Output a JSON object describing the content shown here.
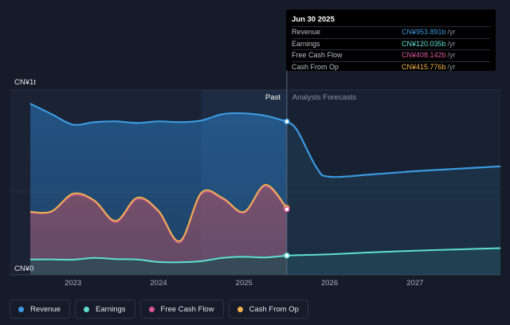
{
  "chart_data": {
    "type": "area",
    "y_axis": {
      "top_label": "CN¥1t",
      "bottom_label": "CN¥0",
      "ylim": [
        0,
        1150
      ]
    },
    "x_axis": {
      "ticks": [
        "2023",
        "2024",
        "2025",
        "2026",
        "2027"
      ],
      "tick_values": [
        2023.0,
        2024.0,
        2025.0,
        2026.0,
        2027.0
      ],
      "xlim": [
        2022.5,
        2028.0
      ]
    },
    "divider": {
      "x": 2025.5,
      "past_label": "Past",
      "forecast_label": "Analysts Forecasts"
    },
    "shaded_band_start": 2024.5,
    "series": [
      {
        "name": "Revenue",
        "color": "#3b9ae1",
        "key": "revenue",
        "points": [
          [
            2022.5,
            1065
          ],
          [
            2022.75,
            1000
          ],
          [
            2023.0,
            935
          ],
          [
            2023.25,
            950
          ],
          [
            2023.5,
            955
          ],
          [
            2023.75,
            945
          ],
          [
            2024.0,
            955
          ],
          [
            2024.25,
            950
          ],
          [
            2024.5,
            960
          ],
          [
            2024.75,
            1000
          ],
          [
            2025.0,
            1005
          ],
          [
            2025.25,
            990
          ],
          [
            2025.5,
            954
          ]
        ],
        "forecast": [
          [
            2025.5,
            954
          ],
          [
            2025.62,
            900
          ],
          [
            2025.85,
            665
          ],
          [
            2026.0,
            610
          ],
          [
            2026.5,
            625
          ],
          [
            2027.0,
            645
          ],
          [
            2027.5,
            660
          ],
          [
            2028.0,
            675
          ]
        ]
      },
      {
        "name": "Earnings",
        "color": "#5ee0d0",
        "key": "earnings",
        "points": [
          [
            2022.5,
            95
          ],
          [
            2022.75,
            96
          ],
          [
            2023.0,
            94
          ],
          [
            2023.25,
            105
          ],
          [
            2023.5,
            98
          ],
          [
            2023.75,
            95
          ],
          [
            2024.0,
            80
          ],
          [
            2024.25,
            78
          ],
          [
            2024.5,
            85
          ],
          [
            2024.75,
            105
          ],
          [
            2025.0,
            112
          ],
          [
            2025.25,
            108
          ],
          [
            2025.5,
            120
          ]
        ],
        "forecast": [
          [
            2025.5,
            120
          ],
          [
            2026.0,
            128
          ],
          [
            2026.5,
            140
          ],
          [
            2027.0,
            150
          ],
          [
            2027.5,
            158
          ],
          [
            2028.0,
            166
          ]
        ]
      },
      {
        "name": "Free Cash Flow",
        "color": "#d9559b",
        "key": "fcf",
        "points": [
          [
            2022.5,
            385
          ],
          [
            2022.75,
            392
          ],
          [
            2023.0,
            495
          ],
          [
            2023.25,
            455
          ],
          [
            2023.5,
            325
          ],
          [
            2023.75,
            470
          ],
          [
            2024.0,
            390
          ],
          [
            2024.25,
            200
          ],
          [
            2024.5,
            500
          ],
          [
            2024.75,
            470
          ],
          [
            2025.0,
            385
          ],
          [
            2025.25,
            550
          ],
          [
            2025.5,
            408
          ]
        ],
        "forecast": []
      },
      {
        "name": "Cash From Op",
        "color": "#f3b14e",
        "key": "cfo",
        "points": [
          [
            2022.5,
            392
          ],
          [
            2022.75,
            395
          ],
          [
            2023.0,
            505
          ],
          [
            2023.25,
            462
          ],
          [
            2023.5,
            335
          ],
          [
            2023.75,
            480
          ],
          [
            2024.0,
            398
          ],
          [
            2024.25,
            210
          ],
          [
            2024.5,
            510
          ],
          [
            2024.75,
            478
          ],
          [
            2025.0,
            392
          ],
          [
            2025.25,
            560
          ],
          [
            2025.5,
            416
          ]
        ],
        "forecast": []
      }
    ]
  },
  "tooltip": {
    "date": "Jun 30 2025",
    "rows": [
      {
        "label": "Revenue",
        "value": "CN¥953.891b",
        "unit": "/yr",
        "color": "#3b9ae1"
      },
      {
        "label": "Earnings",
        "value": "CN¥120.035b",
        "unit": "/yr",
        "color": "#5ee0d0"
      },
      {
        "label": "Free Cash Flow",
        "value": "CN¥408.142b",
        "unit": "/yr",
        "color": "#d9559b"
      },
      {
        "label": "Cash From Op",
        "value": "CN¥415.776b",
        "unit": "/yr",
        "color": "#f3b14e"
      }
    ]
  },
  "legend": [
    {
      "label": "Revenue",
      "color": "#3b9ae1"
    },
    {
      "label": "Earnings",
      "color": "#5ee0d0"
    },
    {
      "label": "Free Cash Flow",
      "color": "#d9559b"
    },
    {
      "label": "Cash From Op",
      "color": "#f3b14e"
    }
  ]
}
